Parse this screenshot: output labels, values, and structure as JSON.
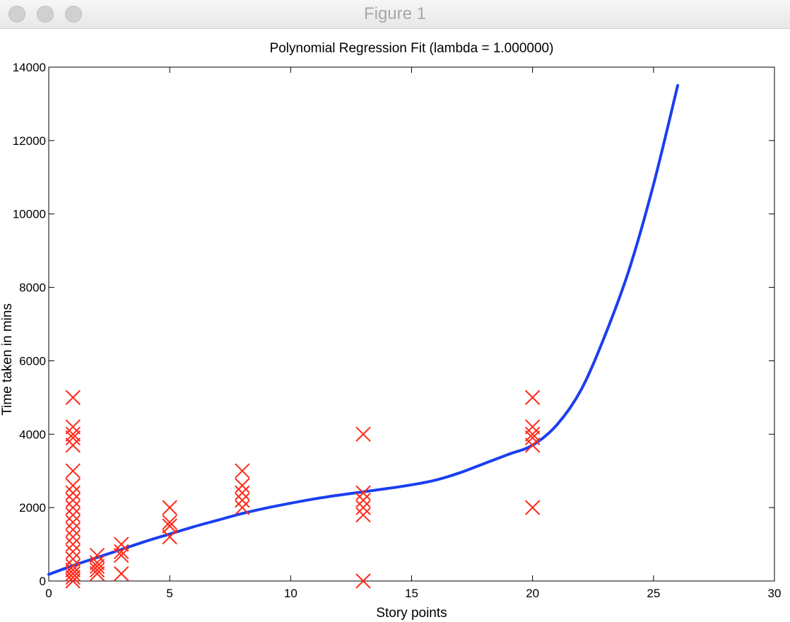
{
  "window": {
    "title": "Figure 1"
  },
  "chart_data": {
    "type": "scatter",
    "title": "Polynomial Regression Fit (lambda = 1.000000)",
    "xlabel": "Story points",
    "ylabel": "Time taken in mins",
    "xlim": [
      0,
      30
    ],
    "ylim": [
      0,
      14000
    ],
    "xticks": [
      0,
      5,
      10,
      15,
      20,
      25,
      30
    ],
    "yticks": [
      0,
      2000,
      4000,
      6000,
      8000,
      10000,
      12000,
      14000
    ],
    "grid": false,
    "marker_color": "#ff2a1a",
    "fit_color": "#1a3fee",
    "series": [
      {
        "kind": "points",
        "marker": "x",
        "points": [
          [
            1,
            5000
          ],
          [
            1,
            4200
          ],
          [
            1,
            4000
          ],
          [
            1,
            3900
          ],
          [
            1,
            3700
          ],
          [
            1,
            3000
          ],
          [
            1,
            2600
          ],
          [
            1,
            2400
          ],
          [
            1,
            2200
          ],
          [
            1,
            2000
          ],
          [
            1,
            1800
          ],
          [
            1,
            1600
          ],
          [
            1,
            1400
          ],
          [
            1,
            1200
          ],
          [
            1,
            1000
          ],
          [
            1,
            800
          ],
          [
            1,
            600
          ],
          [
            1,
            400
          ],
          [
            1,
            300
          ],
          [
            1,
            200
          ],
          [
            1,
            100
          ],
          [
            1,
            0
          ],
          [
            2,
            700
          ],
          [
            2,
            500
          ],
          [
            2,
            400
          ],
          [
            2,
            300
          ],
          [
            2,
            200
          ],
          [
            3,
            1000
          ],
          [
            3,
            800
          ],
          [
            3,
            700
          ],
          [
            3,
            200
          ],
          [
            5,
            2000
          ],
          [
            5,
            1600
          ],
          [
            5,
            1500
          ],
          [
            5,
            1200
          ],
          [
            8,
            3000
          ],
          [
            8,
            2600
          ],
          [
            8,
            2400
          ],
          [
            8,
            2200
          ],
          [
            8,
            2000
          ],
          [
            13,
            4000
          ],
          [
            13,
            2400
          ],
          [
            13,
            2200
          ],
          [
            13,
            2000
          ],
          [
            13,
            1800
          ],
          [
            13,
            0
          ],
          [
            20,
            5000
          ],
          [
            20,
            4200
          ],
          [
            20,
            4000
          ],
          [
            20,
            3900
          ],
          [
            20,
            3700
          ],
          [
            20,
            2000
          ]
        ]
      },
      {
        "kind": "line",
        "points": [
          [
            0,
            180
          ],
          [
            1,
            420
          ],
          [
            2,
            640
          ],
          [
            3,
            860
          ],
          [
            4,
            1080
          ],
          [
            5,
            1280
          ],
          [
            6,
            1480
          ],
          [
            7,
            1660
          ],
          [
            8,
            1840
          ],
          [
            9,
            1990
          ],
          [
            10,
            2120
          ],
          [
            11,
            2240
          ],
          [
            12,
            2340
          ],
          [
            13,
            2430
          ],
          [
            14,
            2520
          ],
          [
            15,
            2620
          ],
          [
            16,
            2750
          ],
          [
            17,
            2950
          ],
          [
            18,
            3200
          ],
          [
            19,
            3450
          ],
          [
            20,
            3700
          ],
          [
            21,
            4250
          ],
          [
            22,
            5200
          ],
          [
            23,
            6700
          ],
          [
            24,
            8500
          ],
          [
            25,
            10800
          ],
          [
            26,
            13500
          ]
        ]
      }
    ]
  }
}
